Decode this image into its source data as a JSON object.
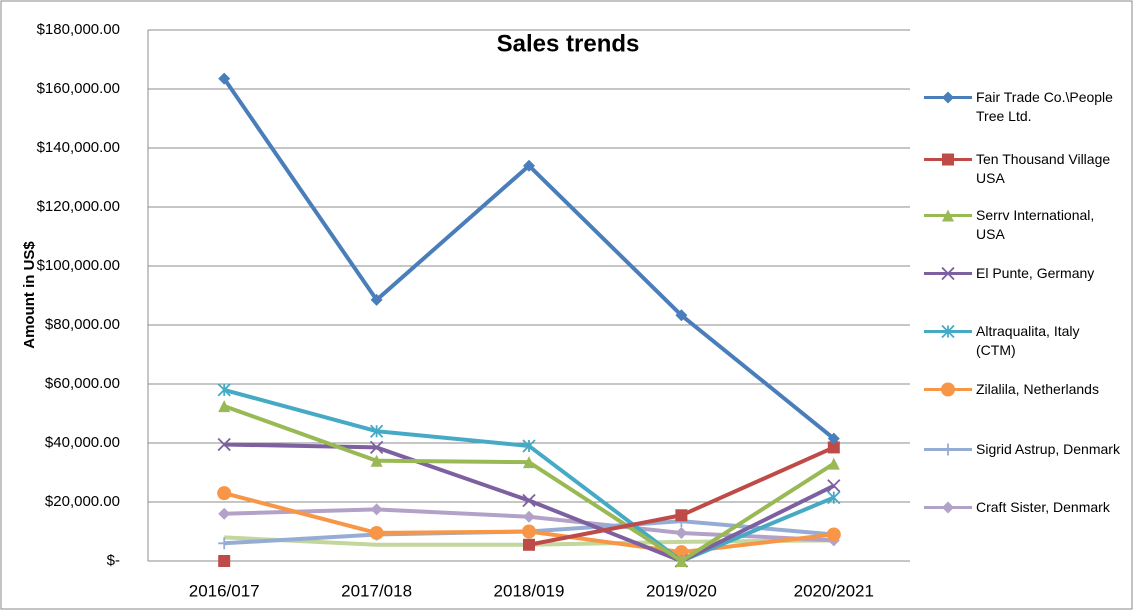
{
  "chart_data": {
    "type": "line",
    "title": "Sales trends",
    "y_label": "Amount in US$",
    "categories": [
      "2016/017",
      "2017/018",
      "2018/019",
      "2019/020",
      "2020/2021"
    ],
    "ylim": [
      0,
      180000
    ],
    "yticks": [
      {
        "value": 0,
        "label": "$-"
      },
      {
        "value": 20000,
        "label": "$20,000.00"
      },
      {
        "value": 40000,
        "label": "$40,000.00"
      },
      {
        "value": 60000,
        "label": "$60,000.00"
      },
      {
        "value": 80000,
        "label": "$80,000.00"
      },
      {
        "value": 100000,
        "label": "$100,000.00"
      },
      {
        "value": 120000,
        "label": "$120,000.00"
      },
      {
        "value": 140000,
        "label": "$140,000.00"
      },
      {
        "value": 160000,
        "label": "$160,000.00"
      },
      {
        "value": 180000,
        "label": "$180,000.00"
      }
    ],
    "grid": true,
    "legend": "right",
    "series": [
      {
        "name": "Fair Trade Co.\\People Tree Ltd.",
        "color": "#4a7ebb",
        "marker": "diamond",
        "values": [
          163500,
          88500,
          134000,
          83300,
          41500
        ]
      },
      {
        "name": "Ten Thousand Village USA",
        "color": "#be4b48",
        "marker": "square",
        "values": [
          0,
          null,
          5500,
          15500,
          38500
        ]
      },
      {
        "name": "Serrv International, USA",
        "color": "#98b954",
        "marker": "triangle",
        "values": [
          52500,
          34000,
          33500,
          0,
          33000
        ]
      },
      {
        "name": "El Punte, Germany",
        "color": "#7d60a0",
        "marker": "x",
        "values": [
          39500,
          38500,
          20500,
          0,
          25500
        ]
      },
      {
        "name": "Altraqualita, Italy (CTM)",
        "color": "#46aac5",
        "marker": "star",
        "values": [
          58000,
          44000,
          39000,
          0,
          21500
        ]
      },
      {
        "name": "Zilalila, Netherlands",
        "color": "#f79646",
        "marker": "circle",
        "values": [
          23000,
          9500,
          10000,
          3000,
          9000
        ]
      },
      {
        "name": "Sigrid Astrup, Denmark",
        "color": "#95add4",
        "marker": "plus",
        "values": [
          6000,
          9000,
          10000,
          13500,
          9000
        ]
      },
      {
        "name": "Craft Sister, Denmark",
        "color": "#b3a2c7",
        "marker": "diamond",
        "values": [
          16000,
          17500,
          15000,
          9500,
          7000
        ]
      },
      {
        "color": "#c3d69b",
        "marker": "none",
        "values": [
          8000,
          5500,
          5500,
          6500,
          7000
        ]
      }
    ]
  }
}
